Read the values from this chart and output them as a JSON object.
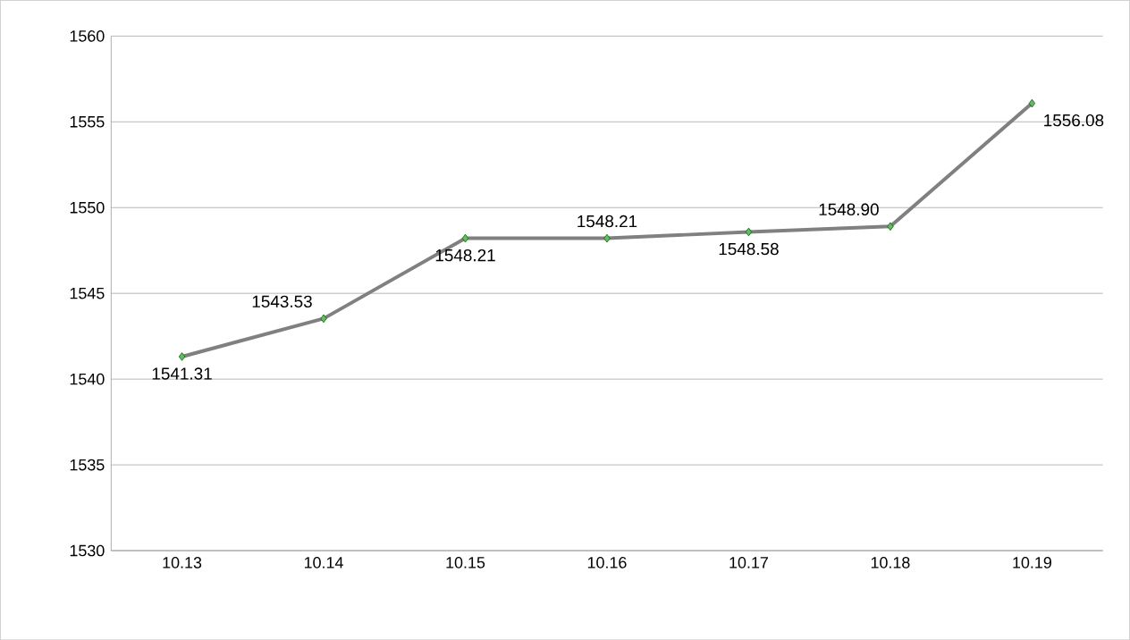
{
  "chart_data": {
    "type": "line",
    "categories": [
      "10.13",
      "10.14",
      "10.15",
      "10.16",
      "10.17",
      "10.18",
      "10.19"
    ],
    "values": [
      1541.31,
      1543.53,
      1548.21,
      1548.21,
      1548.58,
      1548.9,
      1556.08
    ],
    "color": "#808080",
    "ylim": [
      1530,
      1560
    ],
    "yticks": [
      1530,
      1535,
      1540,
      1545,
      1550,
      1555,
      1560
    ],
    "grid": "y",
    "marker": "diamond",
    "line_style": "solid",
    "value_labels": [
      "1541.31",
      "1543.53",
      "1548.21",
      "1548.21",
      "1548.58",
      "1548.90",
      "1556.08"
    ]
  }
}
